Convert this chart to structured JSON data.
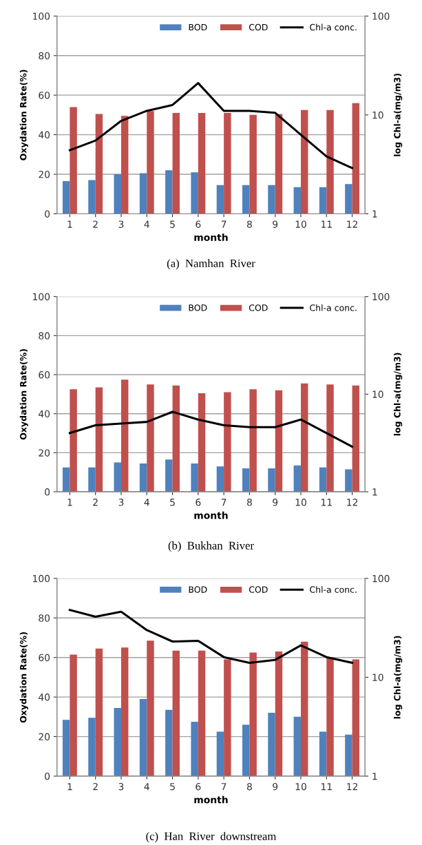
{
  "chart_data": [
    {
      "type": "bar",
      "xlabel": "month",
      "ylabel": "Oxydation Rate(%)",
      "y2label": "log Chl-a(mg/m3)",
      "categories": [
        "1",
        "2",
        "3",
        "4",
        "5",
        "6",
        "7",
        "8",
        "9",
        "10",
        "11",
        "12"
      ],
      "ylim": [
        0,
        100
      ],
      "yticks": [
        0,
        20,
        40,
        60,
        80,
        100
      ],
      "y2lim": [
        1,
        100
      ],
      "y2ticks": [
        1,
        10,
        100
      ],
      "log": "y2",
      "grid": "y",
      "legend": "top right",
      "annotations": [
        "(a)  Namhan  River"
      ],
      "series": [
        {
          "name": "BOD",
          "type": "bar",
          "color": "#4f81bd",
          "values": [
            16.5,
            17,
            20,
            20.5,
            22,
            21,
            14.5,
            14.5,
            14.5,
            13.5,
            13.5,
            15
          ]
        },
        {
          "name": "COD",
          "type": "bar",
          "color": "#c0504d",
          "values": [
            54,
            50.5,
            49.5,
            52,
            51,
            51,
            51,
            50,
            50.5,
            52.5,
            52.5,
            56
          ]
        },
        {
          "name": "Chl-a conc.",
          "type": "line",
          "axis": "y2",
          "color": "#000000",
          "values": [
            4.4,
            5.5,
            8.7,
            11,
            12.6,
            21,
            11,
            11,
            10.5,
            6.3,
            3.8,
            2.9
          ]
        }
      ]
    },
    {
      "type": "bar",
      "xlabel": "month",
      "ylabel": "Oxydation Rate(%)",
      "y2label": "log Chl-a(mg/m3)",
      "categories": [
        "1",
        "2",
        "3",
        "4",
        "5",
        "6",
        "7",
        "8",
        "9",
        "10",
        "11",
        "12"
      ],
      "ylim": [
        0,
        100
      ],
      "yticks": [
        0,
        20,
        40,
        60,
        80,
        100
      ],
      "y2lim": [
        1,
        100
      ],
      "y2ticks": [
        1,
        10,
        100
      ],
      "log": "y2",
      "grid": "y",
      "legend": "top right",
      "annotations": [
        "(b)  Bukhan  River"
      ],
      "series": [
        {
          "name": "BOD",
          "type": "bar",
          "color": "#4f81bd",
          "values": [
            12.5,
            12.5,
            15,
            14.5,
            16.5,
            14.5,
            13,
            12,
            12,
            13.5,
            12.5,
            11.5
          ]
        },
        {
          "name": "COD",
          "type": "bar",
          "color": "#c0504d",
          "values": [
            52.5,
            53.5,
            57.5,
            55,
            54.5,
            50.5,
            51,
            52.5,
            52,
            55.5,
            55,
            54.5
          ]
        },
        {
          "name": "Chl-a conc.",
          "type": "line",
          "axis": "y2",
          "color": "#000000",
          "values": [
            4.0,
            4.8,
            5.0,
            5.2,
            6.6,
            5.5,
            4.8,
            4.6,
            4.6,
            5.5,
            4.0,
            2.9
          ]
        }
      ]
    },
    {
      "type": "bar",
      "xlabel": "month",
      "ylabel": "Oxydation Rate(%)",
      "y2label": "log Chl-a(mg/m3)",
      "categories": [
        "1",
        "2",
        "3",
        "4",
        "5",
        "6",
        "7",
        "8",
        "9",
        "10",
        "11",
        "12"
      ],
      "ylim": [
        0,
        100
      ],
      "yticks": [
        0,
        20,
        40,
        60,
        80,
        100
      ],
      "y2lim": [
        1,
        100
      ],
      "y2ticks": [
        1,
        10,
        100
      ],
      "log": "y2",
      "grid": "y",
      "legend": "top right",
      "annotations": [
        "(c)  Han  River  downstream"
      ],
      "series": [
        {
          "name": "BOD",
          "type": "bar",
          "color": "#4f81bd",
          "values": [
            28.5,
            29.5,
            34.5,
            39,
            33.5,
            27.5,
            22.5,
            26,
            32,
            30,
            22.5,
            21
          ]
        },
        {
          "name": "COD",
          "type": "bar",
          "color": "#c0504d",
          "values": [
            61.5,
            64.5,
            65,
            68.5,
            63.5,
            63.5,
            59,
            62.5,
            63,
            68,
            60,
            59
          ]
        },
        {
          "name": "Chl-a conc.",
          "type": "line",
          "axis": "y2",
          "color": "#000000",
          "values": [
            48,
            41,
            46,
            30,
            23,
            23.4,
            16,
            14,
            15,
            21,
            16,
            14
          ]
        }
      ]
    }
  ]
}
